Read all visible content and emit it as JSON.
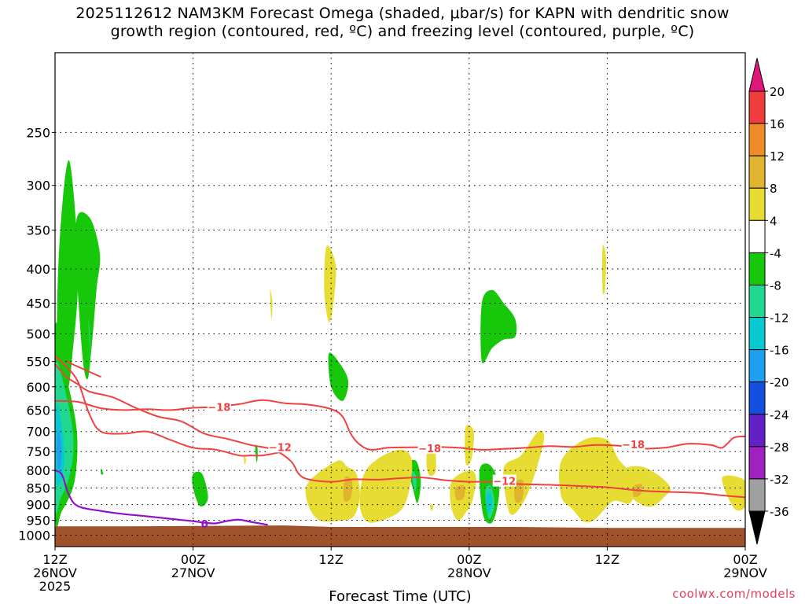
{
  "chart_data": {
    "type": "heatmap",
    "title_line1": "2025112612 NAM3KM Forecast Omega (shaded, μbar/s) for KAPN with dendritic snow",
    "title_line2": "growth region (contoured, red, ºC) and freezing level (contoured, purple, ºC)",
    "xlabel": "Forecast Time (UTC)",
    "ylabel": "",
    "x_unit": "hours since 2025-11-26 12Z",
    "xlim": [
      0,
      60
    ],
    "ylim_hpa": [
      1040,
      190
    ],
    "x_ticks": [
      {
        "x": 0,
        "line1": "12Z",
        "line2": "26NOV",
        "line3": "2025"
      },
      {
        "x": 12,
        "line1": "00Z",
        "line2": "27NOV",
        "line3": ""
      },
      {
        "x": 24,
        "line1": "12Z",
        "line2": "",
        "line3": ""
      },
      {
        "x": 36,
        "line1": "00Z",
        "line2": "28NOV",
        "line3": ""
      },
      {
        "x": 48,
        "line1": "12Z",
        "line2": "",
        "line3": ""
      },
      {
        "x": 60,
        "line1": "00Z",
        "line2": "29NOV",
        "line3": ""
      }
    ],
    "y_ticks": [
      250,
      300,
      350,
      400,
      450,
      500,
      550,
      600,
      650,
      700,
      750,
      800,
      850,
      900,
      950,
      1000
    ],
    "grid": "dotted",
    "ground": {
      "color": "#a0522d",
      "top_hpa": [
        [
          0,
          970
        ],
        [
          6,
          970
        ],
        [
          20,
          967
        ],
        [
          24,
          972
        ],
        [
          40,
          972
        ],
        [
          48,
          975
        ],
        [
          60,
          975
        ]
      ]
    },
    "omega_regions": [
      {
        "level": "-8",
        "color": "#17c80a",
        "x": [
          0.3,
          1.2,
          2.0,
          1.5,
          1.0,
          0.2
        ],
        "p": [
          390,
          275,
          400,
          540,
          620,
          640
        ]
      },
      {
        "level": "-8",
        "color": "#17c80a",
        "x": [
          1.8,
          3.0,
          3.9,
          3.6,
          3.2,
          2.8,
          2.3
        ],
        "p": [
          345,
          335,
          380,
          430,
          520,
          585,
          520
        ]
      },
      {
        "level": "-12",
        "color": "#20d890",
        "x": [
          2.9,
          3.0,
          3.1
        ],
        "p": [
          480,
          495,
          560
        ]
      },
      {
        "level": "-8",
        "color": "#17c80a",
        "x": [
          0.0,
          1.0,
          1.9,
          1.7,
          0.6,
          0.0
        ],
        "p": [
          490,
          580,
          700,
          830,
          920,
          930
        ]
      },
      {
        "level": "-12",
        "color": "#20d890",
        "x": [
          0.0,
          1.0,
          1.6,
          1.3,
          0.5,
          0.0
        ],
        "p": [
          560,
          620,
          720,
          810,
          880,
          900
        ]
      },
      {
        "level": "-16",
        "color": "#08c8d0",
        "x": [
          0.1,
          0.6,
          0.8,
          0.6,
          0.1
        ],
        "p": [
          640,
          690,
          760,
          820,
          830
        ]
      },
      {
        "level": "-20",
        "color": "#1ea0f0",
        "x": [
          0.2,
          0.5,
          0.55,
          0.2
        ],
        "p": [
          700,
          720,
          780,
          790
        ]
      },
      {
        "level": "-8",
        "color": "#17c80a",
        "x": [
          4.0,
          4.1,
          4.2,
          4.0
        ],
        "p": [
          795,
          800,
          810,
          810
        ]
      },
      {
        "level": "-8",
        "color": "#17c80a",
        "x": [
          12.0,
          12.8,
          13.3,
          12.6,
          12.0
        ],
        "p": [
          810,
          810,
          880,
          905,
          850
        ]
      },
      {
        "level": "-8",
        "color": "#17c80a",
        "x": [
          17.4,
          17.6,
          17.6,
          17.5
        ],
        "p": [
          735,
          740,
          770,
          775
        ]
      },
      {
        "level": "-8",
        "color": "#17c80a",
        "x": [
          23.8,
          24.8,
          25.5,
          25.0,
          24.0
        ],
        "p": [
          535,
          555,
          590,
          630,
          600
        ]
      },
      {
        "level": "-8",
        "color": "#17c80a",
        "x": [
          30.6,
          31.4,
          31.8,
          31.5,
          31.1
        ],
        "p": [
          785,
          775,
          830,
          895,
          850
        ]
      },
      {
        "level": "-12",
        "color": "#20d890",
        "x": [
          31.0,
          31.4,
          31.3
        ],
        "p": [
          800,
          820,
          860
        ]
      },
      {
        "level": "-8",
        "color": "#17c80a",
        "x": [
          37.1,
          38.0,
          39.0,
          40.0,
          40.0,
          39.0,
          38.0,
          37.1
        ],
        "p": [
          450,
          430,
          450,
          475,
          505,
          510,
          525,
          550
        ]
      },
      {
        "level": "-8",
        "color": "#17c80a",
        "x": [
          36.9,
          37.8,
          38.6,
          38.4,
          37.9,
          37.2
        ],
        "p": [
          800,
          785,
          840,
          915,
          960,
          930
        ]
      },
      {
        "level": "-12",
        "color": "#20d890",
        "x": [
          37.4,
          37.9,
          38.2,
          37.7
        ],
        "p": [
          860,
          845,
          900,
          945
        ]
      },
      {
        "level": "-16",
        "color": "#08c8d0",
        "x": [
          37.5,
          37.9,
          38.0,
          37.6
        ],
        "p": [
          870,
          870,
          905,
          925
        ]
      }
    ],
    "positive_regions": [
      {
        "level": "4",
        "color": "#e6dc32",
        "x": [
          18.7,
          18.9,
          18.8
        ],
        "p": [
          430,
          450,
          475
        ]
      },
      {
        "level": "4",
        "color": "#e6dc32",
        "x": [
          16.4,
          16.6,
          16.5
        ],
        "p": [
          760,
          770,
          785
        ]
      },
      {
        "level": "4",
        "color": "#e6dc32",
        "x": [
          23.6,
          24.4,
          24.2,
          23.8,
          23.4
        ],
        "p": [
          370,
          395,
          450,
          480,
          430
        ]
      },
      {
        "level": "4",
        "color": "#e6dc32",
        "x": [
          22.0,
          24.5,
          25.4,
          26.2,
          26.5,
          26.0,
          25.0,
          23.0,
          22.0
        ],
        "p": [
          835,
          775,
          790,
          810,
          875,
          935,
          950,
          950,
          900
        ]
      },
      {
        "level": "4",
        "color": "#e6dc32",
        "x": [
          26.8,
          28.0,
          30.0,
          31.0,
          30.8,
          30.0,
          28.0,
          27.0,
          26.5
        ],
        "p": [
          815,
          770,
          745,
          770,
          855,
          920,
          955,
          950,
          900
        ]
      },
      {
        "level": "4",
        "color": "#e6dc32",
        "x": [
          32.4,
          33.0,
          33.1,
          32.6,
          32.3
        ],
        "p": [
          745,
          740,
          800,
          815,
          790
        ]
      },
      {
        "level": "4",
        "color": "#e6dc32",
        "x": [
          32.6,
          32.9,
          32.7
        ],
        "p": [
          900,
          905,
          920
        ]
      },
      {
        "level": "4",
        "color": "#e6dc32",
        "x": [
          34.5,
          36.0,
          36.6,
          36.3,
          35.8,
          35.0,
          34.4
        ],
        "p": [
          830,
          800,
          820,
          885,
          920,
          950,
          900
        ]
      },
      {
        "level": "4",
        "color": "#e6dc32",
        "x": [
          35.7,
          36.4,
          36.2,
          35.7
        ],
        "p": [
          690,
          700,
          770,
          780
        ]
      },
      {
        "level": "4",
        "color": "#e6dc32",
        "x": [
          39.0,
          40.5,
          42.0,
          42.5,
          41.5,
          40.5,
          39.5
        ],
        "p": [
          795,
          760,
          700,
          720,
          830,
          905,
          925
        ]
      },
      {
        "level": "4",
        "color": "#e6dc32",
        "x": [
          44.0,
          46.0,
          48.0,
          49.0,
          50.5,
          50.0,
          48.5,
          47.0,
          46.0,
          45.0,
          44.0
        ],
        "p": [
          775,
          720,
          720,
          770,
          830,
          895,
          890,
          945,
          955,
          915,
          875
        ]
      },
      {
        "level": "4",
        "color": "#e6dc32",
        "x": [
          49.5,
          51.0,
          52.5,
          53.5,
          53.0,
          52.0,
          51.0,
          50.0
        ],
        "p": [
          800,
          790,
          815,
          850,
          875,
          905,
          900,
          870
        ]
      },
      {
        "level": "4",
        "color": "#e6dc32",
        "x": [
          47.6,
          47.9,
          47.8,
          47.6
        ],
        "p": [
          370,
          385,
          430,
          430
        ]
      },
      {
        "level": "4",
        "color": "#e6dc32",
        "x": [
          58.0,
          60.0,
          60.0,
          59.0
        ],
        "p": [
          820,
          830,
          905,
          910
        ]
      },
      {
        "level": "8",
        "color": "#e1b430",
        "x": [
          25.2,
          25.8,
          25.7,
          25.1
        ],
        "p": [
          820,
          830,
          880,
          885
        ]
      },
      {
        "level": "8",
        "color": "#e1b430",
        "x": [
          34.8,
          35.6,
          35.5,
          34.9
        ],
        "p": [
          850,
          845,
          880,
          885
        ]
      },
      {
        "level": "8",
        "color": "#e1b430",
        "x": [
          40.0,
          40.7,
          40.6,
          40.0
        ],
        "p": [
          835,
          830,
          885,
          890
        ]
      },
      {
        "level": "8",
        "color": "#e1b430",
        "x": [
          50.3,
          51.0,
          50.9,
          50.3
        ],
        "p": [
          845,
          840,
          870,
          875
        ]
      }
    ],
    "dgz_contours": [
      {
        "label": "-18",
        "color": "#f04040",
        "x": [
          0,
          2,
          4,
          6,
          8,
          10,
          12,
          14,
          16,
          18,
          20,
          22,
          24,
          25,
          25.7,
          26.4,
          27.4,
          29,
          31,
          33,
          35,
          37,
          39,
          41,
          43,
          45,
          47,
          49,
          51,
          53,
          55,
          57,
          58,
          59,
          60
        ],
        "p": [
          630,
          632,
          646,
          650,
          648,
          650,
          645,
          643,
          637,
          628,
          635,
          638,
          648,
          665,
          705,
          730,
          745,
          740,
          739,
          738,
          740,
          745,
          743,
          740,
          736,
          738,
          733,
          735,
          742,
          740,
          730,
          733,
          740,
          715,
          712
        ],
        "label_x": 14.2,
        "label_p": 645
      },
      {
        "label": "-12",
        "color": "#f04040",
        "x": [
          0,
          1,
          2,
          3,
          5,
          7,
          9,
          11,
          13,
          15,
          17,
          19,
          20.5,
          21.2,
          22,
          24,
          26,
          28,
          30,
          32,
          34,
          36,
          38,
          40,
          42,
          44,
          46,
          48,
          50,
          52,
          54,
          56,
          58,
          60
        ],
        "p": [
          555,
          580,
          595,
          610,
          622,
          645,
          665,
          676,
          705,
          718,
          733,
          745,
          775,
          810,
          825,
          832,
          825,
          826,
          822,
          820,
          828,
          832,
          832,
          838,
          840,
          842,
          845,
          848,
          855,
          860,
          862,
          865,
          872,
          878
        ],
        "label_x": 19.5,
        "label_p": 740
      },
      {
        "label": "-12",
        "color": "#f04040",
        "x": [
          0,
          1,
          2,
          3,
          4,
          6,
          8,
          10,
          12,
          14,
          16,
          17,
          18,
          19,
          20.5
        ],
        "p": [
          540,
          560,
          590,
          660,
          700,
          705,
          700,
          720,
          740,
          745,
          760,
          760,
          760,
          755,
          745
        ],
        "label_x": 0,
        "label_p": 0
      },
      {
        "label": "-18",
        "color": "#f04040",
        "x": [
          1,
          2,
          3,
          4
        ],
        "p": [
          550,
          560,
          570,
          580
        ],
        "label_x": 32.5,
        "label_p": 743
      },
      {
        "label": "-18",
        "color": "#f04040",
        "x": [
          49,
          50
        ],
        "p": [
          735,
          735
        ],
        "label_x": 50.2,
        "label_p": 733
      },
      {
        "label": "-12",
        "color": "#f04040",
        "x": [
          37,
          38
        ],
        "p": [
          830,
          830
        ],
        "label_x": 39.0,
        "label_p": 832
      }
    ],
    "freezing_level": {
      "label": "0",
      "color": "#9010c8",
      "x": [
        0,
        0.6,
        1.2,
        2.0,
        4,
        6,
        8,
        10,
        12,
        13,
        14,
        15,
        16,
        17,
        18.5
      ],
      "p": [
        800,
        812,
        870,
        905,
        920,
        930,
        937,
        945,
        953,
        958,
        960,
        952,
        948,
        955,
        965
      ],
      "label_x": 13.0,
      "label_p": 962
    },
    "colorbar": {
      "labels": [
        "20",
        "16",
        "12",
        "8",
        "4",
        "-4",
        "-8",
        "-12",
        "-16",
        "-20",
        "-24",
        "-28",
        "-32",
        "-36"
      ],
      "colors": [
        "#e0167a",
        "#f03c3c",
        "#f08c28",
        "#e1b430",
        "#e6dc32",
        "#ffffff",
        "#17c80a",
        "#20d890",
        "#08c8d0",
        "#1ea0f0",
        "#1450e0",
        "#6420c8",
        "#a020c0",
        "#a0a0a0",
        "#000000"
      ]
    }
  },
  "credit": "coolwx.com/models"
}
